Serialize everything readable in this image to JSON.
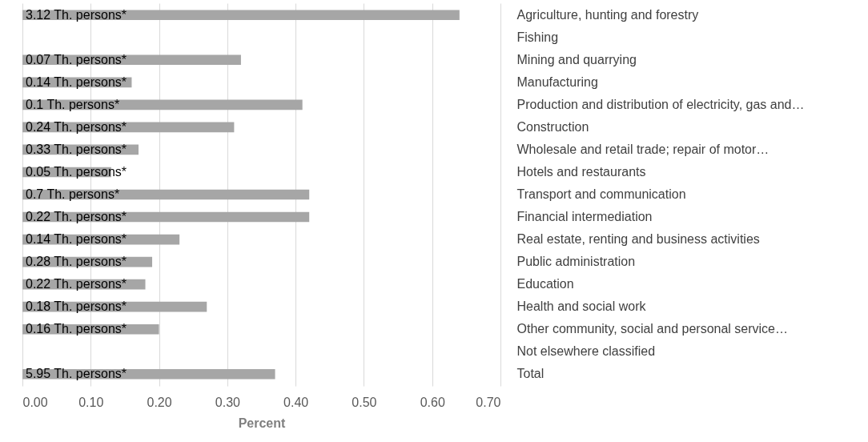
{
  "chart_data": {
    "type": "bar",
    "orientation": "horizontal",
    "xlabel": "Percent",
    "categories": [
      "Agriculture, hunting and forestry",
      "Fishing",
      "Mining and quarrying",
      "Manufacturing",
      "Production and distribution of electricity, gas and…",
      "Construction",
      "Wholesale and retail trade; repair of motor…",
      "Hotels and restaurants",
      "Transport and communication",
      "Financial intermediation",
      "Real estate, renting and business activities",
      "Public administration",
      "Education",
      "Health and social work",
      "Other community, social and personal service…",
      "Not elsewhere classified",
      "Total"
    ],
    "values": [
      0.64,
      null,
      0.32,
      0.16,
      0.41,
      0.31,
      0.17,
      0.13,
      0.42,
      0.42,
      0.23,
      0.19,
      0.18,
      0.27,
      0.2,
      null,
      0.37
    ],
    "annotations": [
      {
        "text": "3.12 Th. persons*",
        "y": "Agriculture, hunting and forestry"
      },
      {
        "text": "0.07 Th. persons*",
        "y": "Mining and quarrying"
      },
      {
        "text": "0.14 Th. persons*",
        "y": "Manufacturing"
      },
      {
        "text": "0.1 Th. persons*",
        "y": "Production and distribution of electricity, gas and…"
      },
      {
        "text": "0.24 Th. persons*",
        "y": "Construction"
      },
      {
        "text": "0.33 Th. persons*",
        "y": "Wholesale and retail trade; repair of motor…"
      },
      {
        "text": "0.05 Th. persons*",
        "y": "Hotels and restaurants"
      },
      {
        "text": "0.7 Th. persons*",
        "y": "Transport and communication"
      },
      {
        "text": "0.22 Th. persons*",
        "y": "Financial intermediation"
      },
      {
        "text": "0.14 Th. persons*",
        "y": "Real estate, renting and business activities"
      },
      {
        "text": "0.28 Th. persons*",
        "y": "Public administration"
      },
      {
        "text": "0.22 Th. persons*",
        "y": "Education"
      },
      {
        "text": "0.18 Th. persons*",
        "y": "Health and social work"
      },
      {
        "text": "0.16 Th. persons*",
        "y": "Other community, social and personal service…"
      },
      {
        "text": "5.95 Th. persons*",
        "y": "Total"
      }
    ],
    "color": "#a6a6a6",
    "xlim": [
      0,
      0.7
    ],
    "xticks": [
      {
        "value": 0,
        "label": "0.00"
      },
      {
        "value": 0.1,
        "label": "0.10"
      },
      {
        "value": 0.2,
        "label": "0.20"
      },
      {
        "value": 0.3,
        "label": "0.30"
      },
      {
        "value": 0.4,
        "label": "0.40"
      },
      {
        "value": 0.5,
        "label": "0.50"
      },
      {
        "value": 0.6,
        "label": "0.60"
      },
      {
        "value": 0.7,
        "label": "0.70"
      }
    ],
    "grid": "x"
  }
}
